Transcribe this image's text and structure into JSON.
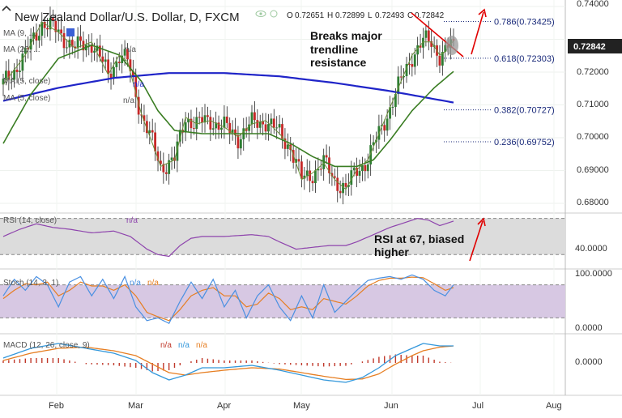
{
  "header": {
    "title": "New Zealand Dollar/U.S. Dollar, D, FXCM",
    "ohlc": {
      "o_label": "O",
      "o": "0.72651",
      "h_label": "H",
      "h": "0.72899",
      "l_label": "L",
      "l": "0.72493",
      "c_label": "C",
      "c": "0.72842"
    }
  },
  "price_badge": "0.72842",
  "legends": {
    "ma1": "MA (9, ...",
    "ma2": "MA (20, ...",
    "ma3": "MA (5, close)",
    "ma4": "MA (5, close)",
    "na": "n/a",
    "rsi": "RSI (14, close)",
    "stoch": "Stoch (14, 3, 1)",
    "macd": "MACD (12, 26, close, 9)"
  },
  "annotations": {
    "trend_line1": "Breaks major",
    "trend_line2": "trendline",
    "trend_line3": "resistance",
    "rsi_line1": "RSI at 67, biased",
    "rsi_line2": "higher"
  },
  "fib_levels": [
    {
      "label": "0.786(0.73425)",
      "value": 0.73425
    },
    {
      "label": "0.618(0.72303)",
      "value": 0.72303
    },
    {
      "label": "0.382(0.70727)",
      "value": 0.70727
    },
    {
      "label": "0.236(0.69752)",
      "value": 0.69752
    }
  ],
  "colors": {
    "bull": "#2e7d32",
    "bear": "#c62828",
    "ma_long": "#1f24c8",
    "ma_mid": "#3a7d23",
    "ma_fast": "#6b8f3a",
    "rsi": "#8e44ad",
    "stoch_k": "#4a90e2",
    "stoch_d": "#e67e22",
    "macd": "#3498db",
    "signal": "#e67e22",
    "hist": "#c0392b",
    "annot": "#e00000",
    "fib": "#1a2a7a",
    "badge": "#222222",
    "rsi_band": "#dcdcdc",
    "stoch_band": "#d7c8e3"
  },
  "chart_data": [
    {
      "type": "candlestick",
      "title": "New Zealand Dollar/U.S. Dollar, D, FXCM",
      "x_tick_labels": [
        "Feb",
        "Mar",
        "Apr",
        "May",
        "Jun",
        "Jul",
        "Aug"
      ],
      "y_tick_labels": [
        "0.74000",
        "0.73000",
        "0.72000",
        "0.71000",
        "0.70000",
        "0.69000",
        "0.68000"
      ],
      "ylim": [
        0.677,
        0.7408
      ],
      "waypoints": [
        [
          0,
          0.715
        ],
        [
          8,
          0.724
        ],
        [
          14,
          0.734
        ],
        [
          20,
          0.731
        ],
        [
          26,
          0.726
        ],
        [
          32,
          0.728
        ],
        [
          38,
          0.718
        ],
        [
          42,
          0.724
        ],
        [
          45,
          0.722
        ],
        [
          50,
          0.706
        ],
        [
          54,
          0.697
        ],
        [
          57,
          0.69
        ],
        [
          62,
          0.692
        ],
        [
          66,
          0.705
        ],
        [
          70,
          0.703
        ],
        [
          75,
          0.704
        ],
        [
          80,
          0.702
        ],
        [
          85,
          0.699
        ],
        [
          90,
          0.703
        ],
        [
          95,
          0.704
        ],
        [
          100,
          0.7
        ],
        [
          104,
          0.696
        ],
        [
          108,
          0.686
        ],
        [
          112,
          0.688
        ],
        [
          116,
          0.691
        ],
        [
          120,
          0.686
        ],
        [
          124,
          0.683
        ],
        [
          128,
          0.689
        ],
        [
          132,
          0.692
        ],
        [
          136,
          0.7
        ],
        [
          140,
          0.708
        ],
        [
          144,
          0.716
        ],
        [
          148,
          0.724
        ],
        [
          152,
          0.728
        ],
        [
          155,
          0.728
        ],
        [
          158,
          0.724
        ],
        [
          160,
          0.725
        ],
        [
          163,
          0.7284
        ]
      ],
      "last_close": 0.72842,
      "sma200": [
        [
          0,
          0.71
        ],
        [
          20,
          0.714
        ],
        [
          40,
          0.717
        ],
        [
          60,
          0.7185
        ],
        [
          80,
          0.7185
        ],
        [
          100,
          0.7175
        ],
        [
          120,
          0.7155
        ],
        [
          140,
          0.713
        ],
        [
          163,
          0.7095
        ]
      ],
      "ma_mid": [
        [
          0,
          0.697
        ],
        [
          10,
          0.712
        ],
        [
          20,
          0.723
        ],
        [
          32,
          0.727
        ],
        [
          42,
          0.724
        ],
        [
          50,
          0.716
        ],
        [
          56,
          0.707
        ],
        [
          62,
          0.701
        ],
        [
          72,
          0.7
        ],
        [
          84,
          0.7
        ],
        [
          96,
          0.7
        ],
        [
          104,
          0.697
        ],
        [
          112,
          0.693
        ],
        [
          120,
          0.69
        ],
        [
          128,
          0.69
        ],
        [
          134,
          0.692
        ],
        [
          140,
          0.698
        ],
        [
          148,
          0.707
        ],
        [
          156,
          0.714
        ],
        [
          163,
          0.719
        ]
      ]
    },
    {
      "type": "line",
      "title": "RSI (14, close)",
      "y_tick_labels": [
        "40.0000"
      ],
      "ylim": [
        15,
        75
      ],
      "bands": [
        30,
        70
      ],
      "current": 67,
      "waypoints": [
        [
          0,
          50
        ],
        [
          6,
          58
        ],
        [
          12,
          64
        ],
        [
          18,
          60
        ],
        [
          24,
          58
        ],
        [
          32,
          54
        ],
        [
          40,
          56
        ],
        [
          46,
          50
        ],
        [
          52,
          36
        ],
        [
          56,
          30
        ],
        [
          60,
          28
        ],
        [
          64,
          40
        ],
        [
          68,
          48
        ],
        [
          72,
          50
        ],
        [
          80,
          50
        ],
        [
          90,
          52
        ],
        [
          96,
          50
        ],
        [
          100,
          44
        ],
        [
          106,
          36
        ],
        [
          112,
          38
        ],
        [
          118,
          40
        ],
        [
          124,
          40
        ],
        [
          128,
          44
        ],
        [
          134,
          52
        ],
        [
          140,
          60
        ],
        [
          146,
          66
        ],
        [
          150,
          70
        ],
        [
          154,
          68
        ],
        [
          158,
          62
        ],
        [
          163,
          67
        ]
      ]
    },
    {
      "type": "line",
      "title": "Stoch (14, 3, 1)",
      "y_tick_labels": [
        "100.0000",
        "0.0000"
      ],
      "ylim": [
        0,
        100
      ],
      "bands": [
        20,
        80
      ],
      "k": [
        [
          0,
          60
        ],
        [
          4,
          90
        ],
        [
          8,
          70
        ],
        [
          12,
          95
        ],
        [
          16,
          80
        ],
        [
          20,
          40
        ],
        [
          24,
          85
        ],
        [
          28,
          95
        ],
        [
          32,
          60
        ],
        [
          36,
          90
        ],
        [
          40,
          55
        ],
        [
          44,
          95
        ],
        [
          48,
          40
        ],
        [
          52,
          15
        ],
        [
          56,
          20
        ],
        [
          60,
          10
        ],
        [
          64,
          50
        ],
        [
          68,
          85
        ],
        [
          72,
          55
        ],
        [
          76,
          90
        ],
        [
          80,
          40
        ],
        [
          84,
          70
        ],
        [
          88,
          20
        ],
        [
          92,
          60
        ],
        [
          96,
          80
        ],
        [
          100,
          40
        ],
        [
          104,
          15
        ],
        [
          108,
          60
        ],
        [
          112,
          20
        ],
        [
          116,
          80
        ],
        [
          120,
          30
        ],
        [
          124,
          50
        ],
        [
          128,
          70
        ],
        [
          132,
          88
        ],
        [
          136,
          92
        ],
        [
          140,
          95
        ],
        [
          144,
          90
        ],
        [
          148,
          98
        ],
        [
          152,
          90
        ],
        [
          156,
          70
        ],
        [
          160,
          60
        ],
        [
          163,
          80
        ]
      ],
      "d": [
        [
          0,
          55
        ],
        [
          4,
          70
        ],
        [
          8,
          82
        ],
        [
          12,
          80
        ],
        [
          16,
          85
        ],
        [
          20,
          60
        ],
        [
          24,
          70
        ],
        [
          28,
          85
        ],
        [
          32,
          78
        ],
        [
          36,
          78
        ],
        [
          40,
          70
        ],
        [
          44,
          80
        ],
        [
          48,
          60
        ],
        [
          52,
          30
        ],
        [
          56,
          22
        ],
        [
          60,
          15
        ],
        [
          64,
          35
        ],
        [
          68,
          60
        ],
        [
          72,
          70
        ],
        [
          76,
          75
        ],
        [
          80,
          60
        ],
        [
          84,
          60
        ],
        [
          88,
          40
        ],
        [
          92,
          45
        ],
        [
          96,
          65
        ],
        [
          100,
          55
        ],
        [
          104,
          35
        ],
        [
          108,
          40
        ],
        [
          112,
          35
        ],
        [
          116,
          55
        ],
        [
          120,
          50
        ],
        [
          124,
          45
        ],
        [
          128,
          60
        ],
        [
          132,
          78
        ],
        [
          136,
          88
        ],
        [
          140,
          92
        ],
        [
          144,
          92
        ],
        [
          148,
          94
        ],
        [
          152,
          93
        ],
        [
          156,
          82
        ],
        [
          160,
          70
        ],
        [
          163,
          75
        ]
      ]
    },
    {
      "type": "line",
      "title": "MACD (12, 26, close, 9)",
      "y_tick_labels": [
        "0.0000"
      ],
      "ylim": [
        -0.012,
        0.01
      ],
      "macd": [
        [
          0,
          0.002
        ],
        [
          10,
          0.006
        ],
        [
          20,
          0.008
        ],
        [
          30,
          0.006
        ],
        [
          40,
          0.004
        ],
        [
          48,
          0.001
        ],
        [
          54,
          -0.004
        ],
        [
          60,
          -0.007
        ],
        [
          66,
          -0.005
        ],
        [
          72,
          -0.002
        ],
        [
          80,
          -0.002
        ],
        [
          90,
          -0.001
        ],
        [
          100,
          -0.003
        ],
        [
          108,
          -0.005
        ],
        [
          116,
          -0.007
        ],
        [
          124,
          -0.008
        ],
        [
          130,
          -0.006
        ],
        [
          136,
          -0.002
        ],
        [
          142,
          0.003
        ],
        [
          148,
          0.006
        ],
        [
          152,
          0.008
        ],
        [
          158,
          0.007
        ],
        [
          163,
          0.007
        ]
      ],
      "signal": [
        [
          0,
          0.001
        ],
        [
          10,
          0.004
        ],
        [
          20,
          0.006
        ],
        [
          30,
          0.0065
        ],
        [
          40,
          0.005
        ],
        [
          48,
          0.003
        ],
        [
          54,
          -0.0005
        ],
        [
          60,
          -0.004
        ],
        [
          66,
          -0.005
        ],
        [
          72,
          -0.004
        ],
        [
          80,
          -0.003
        ],
        [
          90,
          -0.002
        ],
        [
          100,
          -0.0025
        ],
        [
          108,
          -0.004
        ],
        [
          116,
          -0.0055
        ],
        [
          124,
          -0.0068
        ],
        [
          130,
          -0.0066
        ],
        [
          136,
          -0.0045
        ],
        [
          142,
          -0.0005
        ],
        [
          148,
          0.003
        ],
        [
          152,
          0.005
        ],
        [
          158,
          0.0065
        ],
        [
          163,
          0.007
        ]
      ]
    }
  ]
}
